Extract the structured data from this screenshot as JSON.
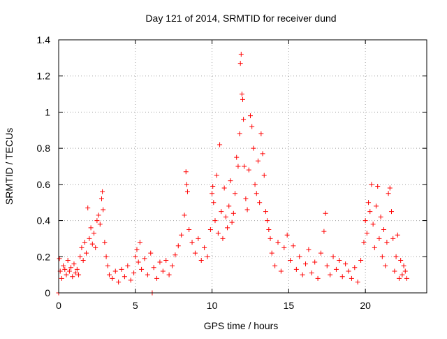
{
  "chart_data": {
    "type": "scatter",
    "title": "Day 121 of 2014, SRMTID for receiver dund",
    "xlabel": "GPS time / hours",
    "ylabel": "SRMTID / TECUs",
    "xlim": [
      0,
      24
    ],
    "ylim": [
      0,
      1.4
    ],
    "xticks": [
      0,
      5,
      10,
      15,
      20
    ],
    "xtick_labels": [
      "0",
      "5",
      "10",
      "15",
      "20"
    ],
    "yticks": [
      0,
      0.2,
      0.4,
      0.6,
      0.8,
      1.0,
      1.2,
      1.4
    ],
    "ytick_labels": [
      "0",
      "0.2",
      "0.4",
      "0.6",
      "0.8",
      "1",
      "1.2",
      "1.4"
    ],
    "grid": true,
    "marker": "+",
    "marker_color": "#ff0000",
    "series": [
      {
        "name": "SRMTID",
        "points": [
          [
            0.0,
            0.0
          ],
          [
            0.05,
            0.19
          ],
          [
            0.1,
            0.12
          ],
          [
            0.2,
            0.08
          ],
          [
            0.3,
            0.15
          ],
          [
            0.4,
            0.13
          ],
          [
            0.5,
            0.1
          ],
          [
            0.6,
            0.18
          ],
          [
            0.7,
            0.12
          ],
          [
            0.8,
            0.14
          ],
          [
            0.9,
            0.09
          ],
          [
            1.0,
            0.16
          ],
          [
            1.1,
            0.11
          ],
          [
            1.2,
            0.13
          ],
          [
            1.3,
            0.1
          ],
          [
            1.4,
            0.2
          ],
          [
            1.5,
            0.25
          ],
          [
            1.6,
            0.18
          ],
          [
            1.7,
            0.28
          ],
          [
            1.8,
            0.22
          ],
          [
            1.9,
            0.47
          ],
          [
            2.0,
            0.3
          ],
          [
            2.1,
            0.36
          ],
          [
            2.2,
            0.27
          ],
          [
            2.3,
            0.33
          ],
          [
            2.4,
            0.25
          ],
          [
            2.5,
            0.4
          ],
          [
            2.6,
            0.43
          ],
          [
            2.7,
            0.38
          ],
          [
            2.8,
            0.52
          ],
          [
            2.85,
            0.56
          ],
          [
            2.9,
            0.46
          ],
          [
            3.0,
            0.28
          ],
          [
            3.1,
            0.2
          ],
          [
            3.2,
            0.15
          ],
          [
            3.3,
            0.1
          ],
          [
            3.5,
            0.08
          ],
          [
            3.7,
            0.12
          ],
          [
            3.9,
            0.06
          ],
          [
            4.1,
            0.13
          ],
          [
            4.3,
            0.09
          ],
          [
            4.5,
            0.15
          ],
          [
            4.7,
            0.07
          ],
          [
            4.9,
            0.11
          ],
          [
            5.0,
            0.2
          ],
          [
            5.1,
            0.24
          ],
          [
            5.2,
            0.17
          ],
          [
            5.3,
            0.28
          ],
          [
            5.4,
            0.13
          ],
          [
            5.6,
            0.19
          ],
          [
            5.8,
            0.1
          ],
          [
            6.0,
            0.22
          ],
          [
            6.2,
            0.14
          ],
          [
            6.4,
            0.08
          ],
          [
            6.6,
            0.17
          ],
          [
            6.8,
            0.12
          ],
          [
            6.1,
            0.0
          ],
          [
            7.0,
            0.18
          ],
          [
            7.2,
            0.1
          ],
          [
            7.4,
            0.15
          ],
          [
            7.6,
            0.21
          ],
          [
            7.8,
            0.26
          ],
          [
            8.0,
            0.32
          ],
          [
            8.2,
            0.43
          ],
          [
            8.3,
            0.67
          ],
          [
            8.35,
            0.6
          ],
          [
            8.4,
            0.56
          ],
          [
            8.5,
            0.35
          ],
          [
            8.7,
            0.28
          ],
          [
            8.9,
            0.22
          ],
          [
            9.1,
            0.3
          ],
          [
            9.3,
            0.18
          ],
          [
            9.5,
            0.25
          ],
          [
            9.7,
            0.2
          ],
          [
            9.9,
            0.35
          ],
          [
            10.0,
            0.55
          ],
          [
            10.05,
            0.59
          ],
          [
            10.1,
            0.5
          ],
          [
            10.2,
            0.4
          ],
          [
            10.3,
            0.65
          ],
          [
            10.4,
            0.33
          ],
          [
            10.5,
            0.82
          ],
          [
            10.6,
            0.45
          ],
          [
            10.7,
            0.3
          ],
          [
            10.8,
            0.58
          ],
          [
            10.9,
            0.42
          ],
          [
            11.0,
            0.36
          ],
          [
            11.1,
            0.48
          ],
          [
            11.2,
            0.62
          ],
          [
            11.3,
            0.39
          ],
          [
            11.4,
            0.44
          ],
          [
            11.5,
            0.55
          ],
          [
            11.6,
            0.75
          ],
          [
            11.7,
            0.7
          ],
          [
            11.8,
            0.88
          ],
          [
            11.85,
            1.27
          ],
          [
            11.9,
            1.32
          ],
          [
            11.95,
            1.1
          ],
          [
            12.0,
            1.07
          ],
          [
            12.05,
            0.96
          ],
          [
            12.1,
            0.7
          ],
          [
            12.2,
            0.52
          ],
          [
            12.3,
            0.46
          ],
          [
            12.4,
            0.68
          ],
          [
            12.5,
            0.98
          ],
          [
            12.6,
            0.92
          ],
          [
            12.7,
            0.8
          ],
          [
            12.8,
            0.6
          ],
          [
            12.9,
            0.55
          ],
          [
            13.0,
            0.73
          ],
          [
            13.1,
            0.5
          ],
          [
            13.2,
            0.88
          ],
          [
            13.3,
            0.77
          ],
          [
            13.4,
            0.65
          ],
          [
            13.5,
            0.45
          ],
          [
            13.6,
            0.4
          ],
          [
            13.7,
            0.35
          ],
          [
            13.8,
            0.3
          ],
          [
            13.9,
            0.22
          ],
          [
            14.1,
            0.15
          ],
          [
            14.3,
            0.28
          ],
          [
            14.5,
            0.12
          ],
          [
            14.7,
            0.25
          ],
          [
            14.9,
            0.32
          ],
          [
            15.1,
            0.18
          ],
          [
            15.3,
            0.26
          ],
          [
            15.5,
            0.13
          ],
          [
            15.7,
            0.2
          ],
          [
            15.9,
            0.1
          ],
          [
            16.1,
            0.16
          ],
          [
            16.3,
            0.24
          ],
          [
            16.5,
            0.11
          ],
          [
            16.7,
            0.17
          ],
          [
            16.9,
            0.08
          ],
          [
            17.1,
            0.22
          ],
          [
            17.3,
            0.34
          ],
          [
            17.4,
            0.44
          ],
          [
            17.5,
            0.15
          ],
          [
            17.7,
            0.1
          ],
          [
            17.9,
            0.2
          ],
          [
            18.1,
            0.13
          ],
          [
            18.3,
            0.18
          ],
          [
            18.5,
            0.09
          ],
          [
            18.7,
            0.16
          ],
          [
            18.9,
            0.12
          ],
          [
            19.1,
            0.08
          ],
          [
            19.3,
            0.14
          ],
          [
            19.5,
            0.06
          ],
          [
            19.7,
            0.18
          ],
          [
            19.9,
            0.28
          ],
          [
            20.0,
            0.4
          ],
          [
            20.1,
            0.33
          ],
          [
            20.2,
            0.5
          ],
          [
            20.3,
            0.45
          ],
          [
            20.4,
            0.6
          ],
          [
            20.5,
            0.38
          ],
          [
            20.6,
            0.25
          ],
          [
            20.7,
            0.48
          ],
          [
            20.8,
            0.59
          ],
          [
            20.9,
            0.3
          ],
          [
            21.0,
            0.42
          ],
          [
            21.1,
            0.2
          ],
          [
            21.2,
            0.35
          ],
          [
            21.3,
            0.15
          ],
          [
            21.4,
            0.28
          ],
          [
            21.5,
            0.55
          ],
          [
            21.6,
            0.58
          ],
          [
            21.7,
            0.45
          ],
          [
            21.8,
            0.3
          ],
          [
            21.9,
            0.12
          ],
          [
            22.0,
            0.2
          ],
          [
            22.1,
            0.32
          ],
          [
            22.2,
            0.08
          ],
          [
            22.3,
            0.18
          ],
          [
            22.4,
            0.1
          ],
          [
            22.5,
            0.15
          ],
          [
            22.6,
            0.12
          ],
          [
            22.7,
            0.08
          ]
        ]
      }
    ]
  }
}
